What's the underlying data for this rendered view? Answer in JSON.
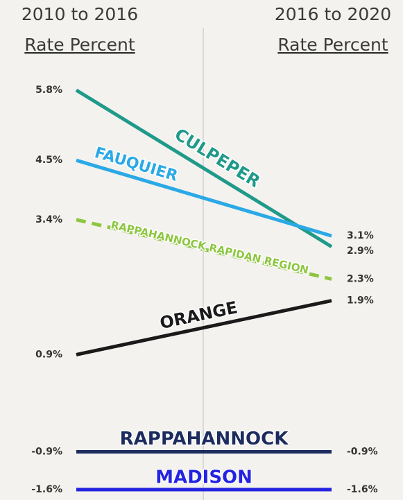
{
  "chart_data": {
    "type": "slope",
    "column_headers": [
      {
        "period": "2010 to 2016",
        "label": "Rate Percent"
      },
      {
        "period": "2016 to 2020",
        "label": "Rate Percent"
      }
    ],
    "series": [
      {
        "name": "CULPEPER",
        "color": "#1f9a8a",
        "values": [
          5.8,
          2.9
        ],
        "value_labels": [
          "5.8%",
          "2.9%"
        ]
      },
      {
        "name": "FAUQUIER",
        "color": "#2aa9e6",
        "values": [
          4.5,
          3.1
        ],
        "value_labels": [
          "4.5%",
          "3.1%"
        ]
      },
      {
        "name": "RAPPAHANNOCK RAPIDAN REGION",
        "color": "#8cc63f",
        "dashed": true,
        "values": [
          3.4,
          2.3
        ],
        "value_labels": [
          "3.4%",
          "2.3%"
        ]
      },
      {
        "name": "ORANGE",
        "color": "#1a1a1a",
        "values": [
          0.9,
          1.9
        ],
        "value_labels": [
          "0.9%",
          "1.9%"
        ]
      },
      {
        "name": "RAPPAHANNOCK",
        "color": "#1c2c5e",
        "values": [
          -0.9,
          -0.9
        ],
        "value_labels": [
          "-0.9%",
          "-0.9%"
        ]
      },
      {
        "name": "MADISON",
        "color": "#2424e0",
        "values": [
          -1.6,
          -1.6
        ],
        "value_labels": [
          "-1.6%",
          "-1.6%"
        ]
      }
    ],
    "ylim": [
      -1.6,
      5.8
    ]
  }
}
